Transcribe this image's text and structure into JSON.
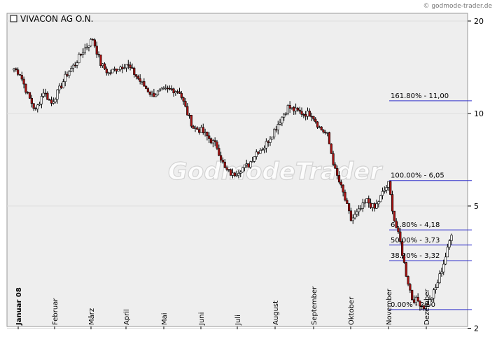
{
  "copyright": "© godmode-trader.de",
  "watermark": "GodmodeTrader",
  "chart_data": {
    "type": "candlestick",
    "title": "VIVACON AG O.N.",
    "yscale": "log",
    "ylim": [
      2,
      21
    ],
    "yticks": [
      20,
      10,
      5,
      2
    ],
    "months": [
      "Januar 08",
      "Februar",
      "März",
      "April",
      "Mai",
      "Juni",
      "Juli",
      "August",
      "September",
      "Oktober",
      "November",
      "Dezember"
    ],
    "fib_levels": [
      {
        "label": "161.80% - 11,00",
        "value": 11.0
      },
      {
        "label": "100.00% - 6,05",
        "value": 6.05
      },
      {
        "label": "61.80% - 4,18",
        "value": 4.18
      },
      {
        "label": "50.00% - 3,73",
        "value": 3.73
      },
      {
        "label": "38.20% - 3,32",
        "value": 3.32
      },
      {
        "label": "0.00% - 2,30",
        "value": 2.3
      }
    ],
    "anchors": [
      [
        0,
        14.0
      ],
      [
        3,
        13.5
      ],
      [
        7,
        11.5
      ],
      [
        11,
        10.2
      ],
      [
        15,
        11.8
      ],
      [
        19,
        10.8
      ],
      [
        23,
        12.0
      ],
      [
        27,
        13.5
      ],
      [
        31,
        14.5
      ],
      [
        35,
        16.0
      ],
      [
        40,
        17.5
      ],
      [
        44,
        14.5
      ],
      [
        48,
        13.5
      ],
      [
        52,
        14.0
      ],
      [
        57,
        14.5
      ],
      [
        61,
        13.5
      ],
      [
        65,
        12.5
      ],
      [
        70,
        11.5
      ],
      [
        75,
        11.8
      ],
      [
        80,
        12.0
      ],
      [
        84,
        11.8
      ],
      [
        88,
        10.0
      ],
      [
        91,
        9.0
      ],
      [
        95,
        8.8
      ],
      [
        99,
        8.3
      ],
      [
        103,
        7.8
      ],
      [
        107,
        6.6
      ],
      [
        111,
        6.3
      ],
      [
        115,
        6.6
      ],
      [
        119,
        6.8
      ],
      [
        123,
        7.5
      ],
      [
        127,
        7.8
      ],
      [
        131,
        8.6
      ],
      [
        135,
        9.5
      ],
      [
        139,
        10.5
      ],
      [
        143,
        10.2
      ],
      [
        147,
        10.0
      ],
      [
        151,
        10.0
      ],
      [
        155,
        9.0
      ],
      [
        159,
        8.5
      ],
      [
        163,
        6.5
      ],
      [
        167,
        5.5
      ],
      [
        171,
        4.5
      ],
      [
        175,
        4.8
      ],
      [
        179,
        5.2
      ],
      [
        183,
        4.9
      ],
      [
        187,
        5.5
      ],
      [
        190,
        5.9
      ],
      [
        193,
        4.5
      ],
      [
        196,
        3.8
      ],
      [
        199,
        3.0
      ],
      [
        202,
        2.5
      ],
      [
        205,
        2.45
      ],
      [
        208,
        2.35
      ],
      [
        211,
        2.45
      ],
      [
        214,
        2.7
      ],
      [
        217,
        3.1
      ],
      [
        220,
        3.6
      ],
      [
        222,
        4.1
      ]
    ]
  }
}
